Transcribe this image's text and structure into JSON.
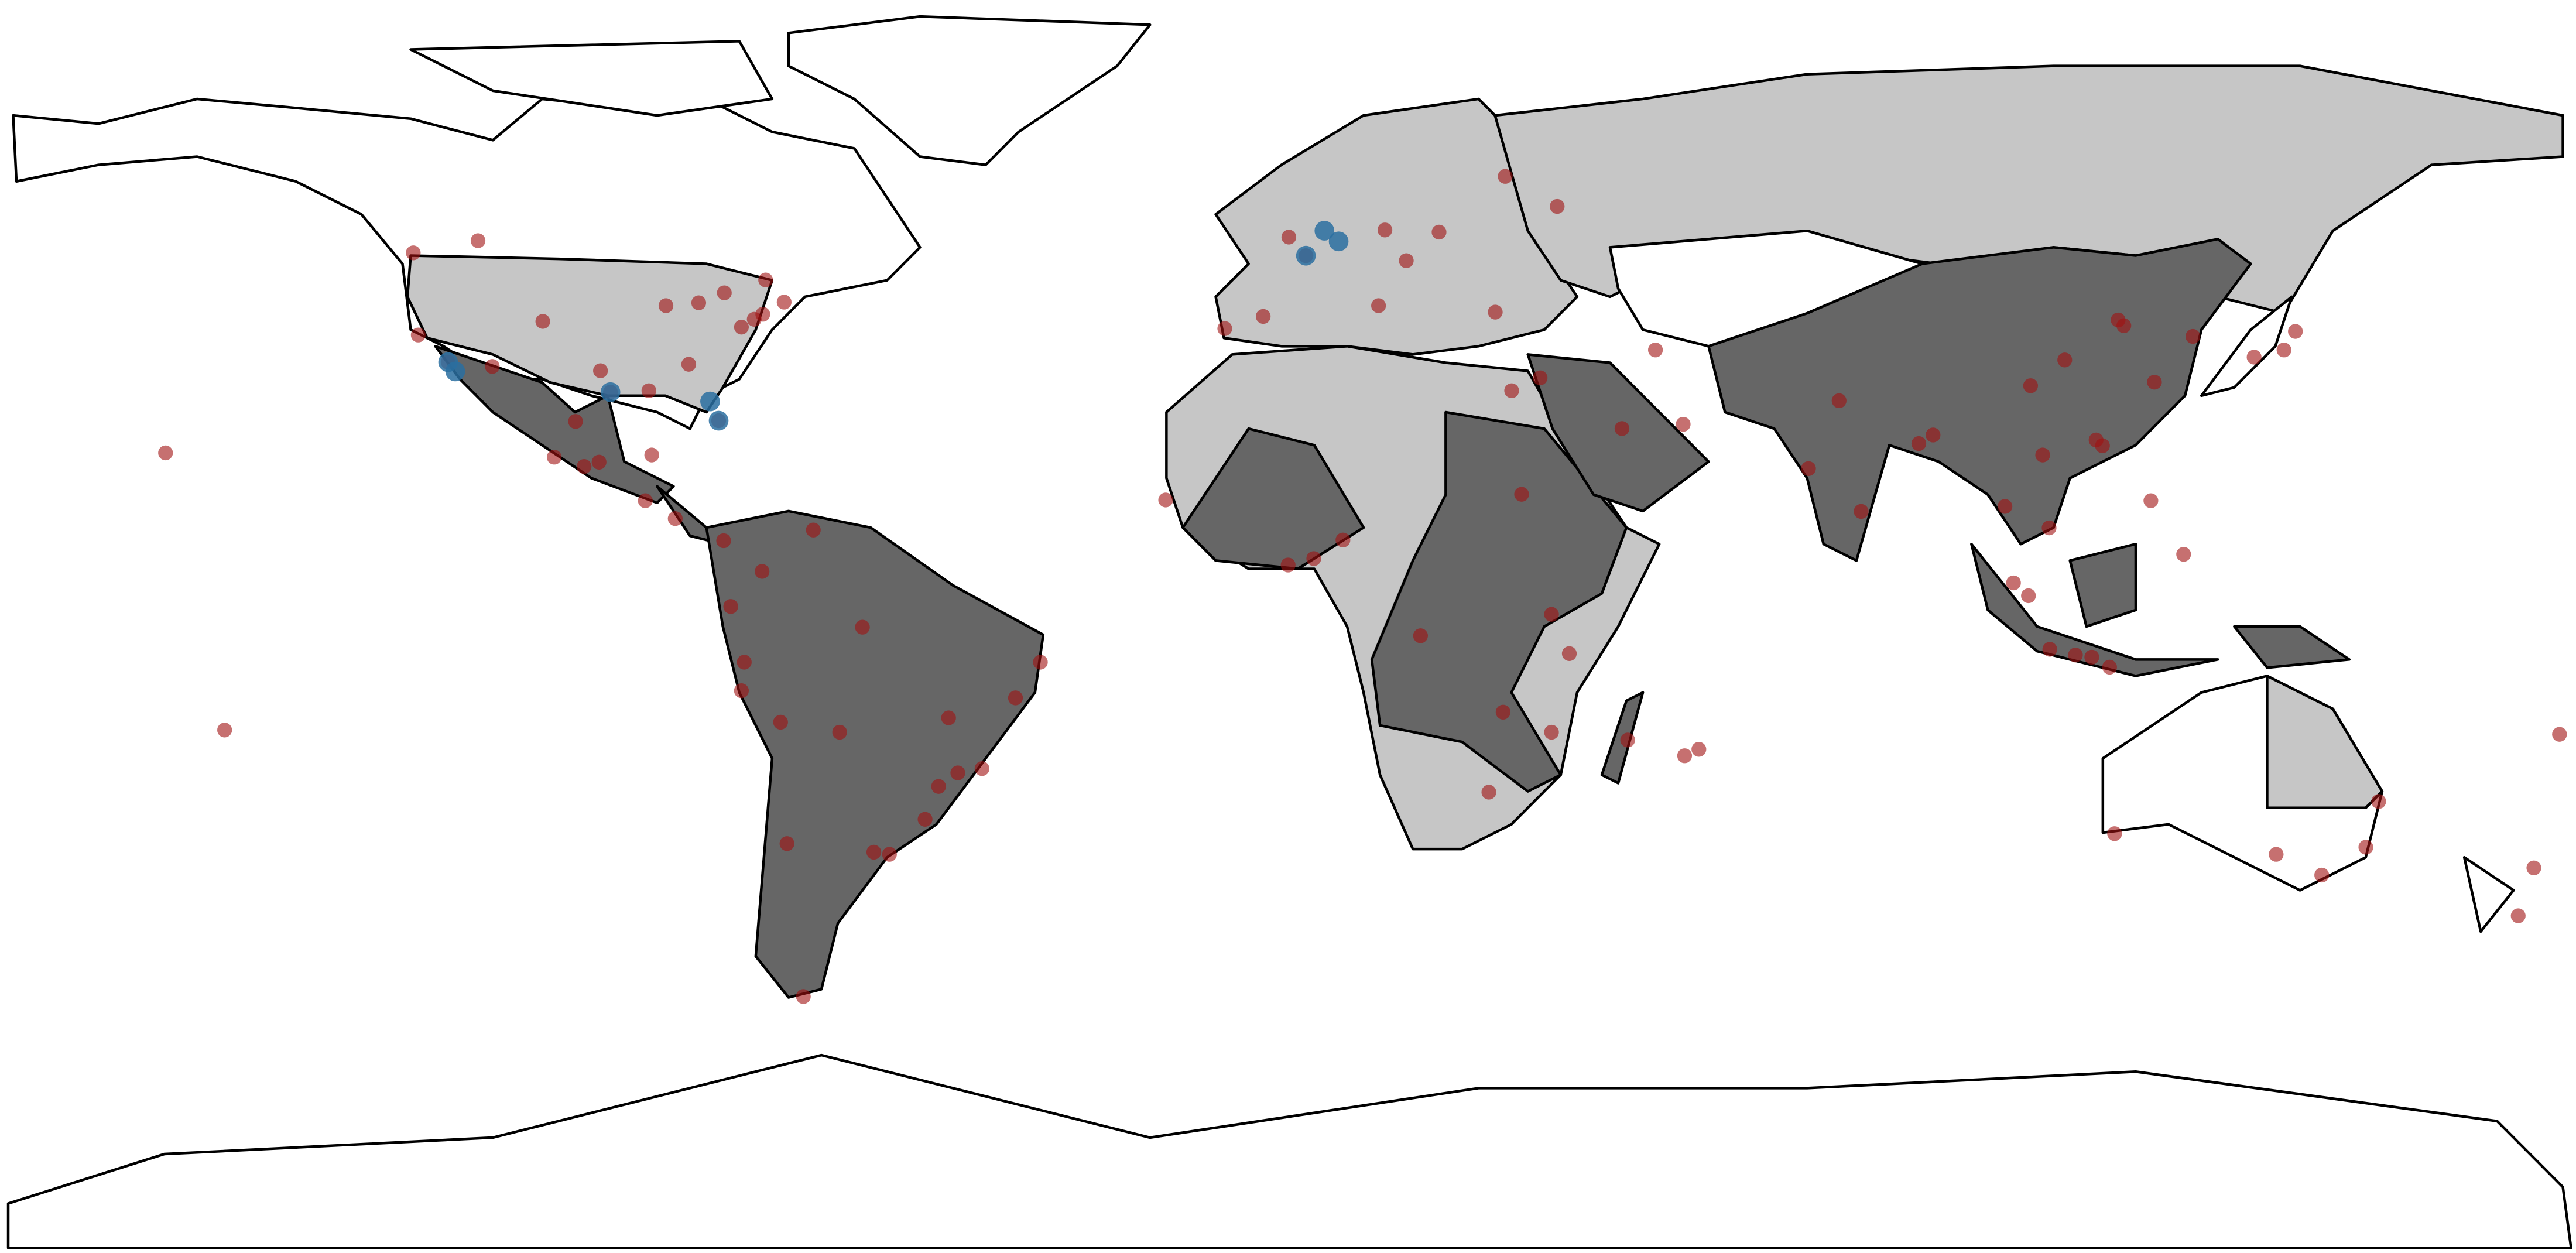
{
  "chart_data": {
    "type": "scatter",
    "series": [
      {
        "color": "#a01010",
        "x": [
          -122.4,
          -118.2,
          -112,
          -104.9,
          -96.8,
          -95.4,
          -90,
          -87.6,
          -84.4,
          -83,
          -80.2,
          -77,
          -75.2,
          -74,
          -71,
          -79.4,
          -73.6,
          -123.1,
          -114,
          -97,
          -99.1,
          -103.3,
          -100.3,
          -89.6,
          -90.5,
          -86.3,
          -79.5,
          -74.1,
          -66.9,
          -76.6,
          -78.5,
          -77,
          -71.5,
          -63.2,
          -60,
          -47.9,
          -43.2,
          -46.6,
          -38.5,
          -35,
          -49.3,
          -51.2,
          -58.4,
          -56.2,
          -70.6,
          -68.3,
          -0.1,
          2.3,
          -3.7,
          -9.1,
          12.5,
          13.4,
          16.4,
          21,
          30.3,
          37.6,
          28.9,
          35.2,
          31.2,
          46.7,
          51.4,
          55.3,
          3.4,
          -17.4,
          -0.2,
          7.5,
          36.8,
          32.6,
          18.4,
          28,
          30,
          36.8,
          39.3,
          47.5,
          57.5,
          72.9,
          77.2,
          80.3,
          88.4,
          90.4,
          100.5,
          106.7,
          105.8,
          106.8,
          110.4,
          114.2,
          116.4,
          121.5,
          104.1,
          113.3,
          108.9,
          117.2,
          126.9,
          139.7,
          135.5,
          141.3,
          121,
          125.6,
          101.7,
          103.8,
          112.7,
          115.2,
          151.2,
          145,
          153,
          115.9,
          138.6,
          174.8,
          172.6,
          178.4,
          -157.9,
          -149.6,
          55.5
        ],
        "y": [
          37.8,
          34,
          33.4,
          39.7,
          32.8,
          29.8,
          30,
          41.9,
          33.7,
          42.3,
          25.8,
          38.9,
          40,
          40.7,
          42.4,
          43.7,
          45.5,
          49.3,
          51,
          20,
          19.4,
          20.7,
          25.7,
          21,
          14.6,
          12.1,
          9,
          4.7,
          10.5,
          -8,
          -0.2,
          -12,
          -16.4,
          -17.8,
          -3.1,
          -15.8,
          -22.9,
          -23.5,
          -13,
          -8,
          -25.4,
          -30,
          -34.6,
          -34.9,
          -33.4,
          -54.8,
          51.5,
          48.9,
          40.4,
          38.7,
          41.9,
          52.5,
          48.2,
          52.2,
          60,
          55.8,
          41,
          31.8,
          30,
          24.7,
          35.7,
          25.3,
          6.5,
          14.7,
          5.6,
          9.1,
          -1.3,
          15.5,
          -4.3,
          -26.2,
          -15,
          -17.8,
          -6.8,
          -18.9,
          -20.2,
          19.1,
          28.6,
          13.1,
          22.6,
          23.8,
          13.8,
          10.8,
          21,
          -6.2,
          -7,
          22.3,
          39.9,
          31.2,
          30.7,
          23.1,
          34.3,
          39.1,
          37.6,
          35.7,
          34.7,
          38.3,
          14.6,
          7.1,
          3.1,
          1.3,
          -7.3,
          -8.7,
          -33.9,
          -37.8,
          -27.5,
          -32,
          -34.9,
          -36.8,
          -43.5,
          -18.1,
          21.3,
          -17.5,
          -21.1
        ]
      },
      {
        "color": "#2a6fa0",
        "x": [
          -118.2,
          -117.2,
          -95.4,
          -80.2,
          -81.4,
          4.9,
          2.3,
          6.9
        ],
        "y": [
          34,
          32.7,
          29.8,
          25.8,
          28.5,
          52.4,
          48.9,
          50.9
        ]
      }
    ]
  }
}
